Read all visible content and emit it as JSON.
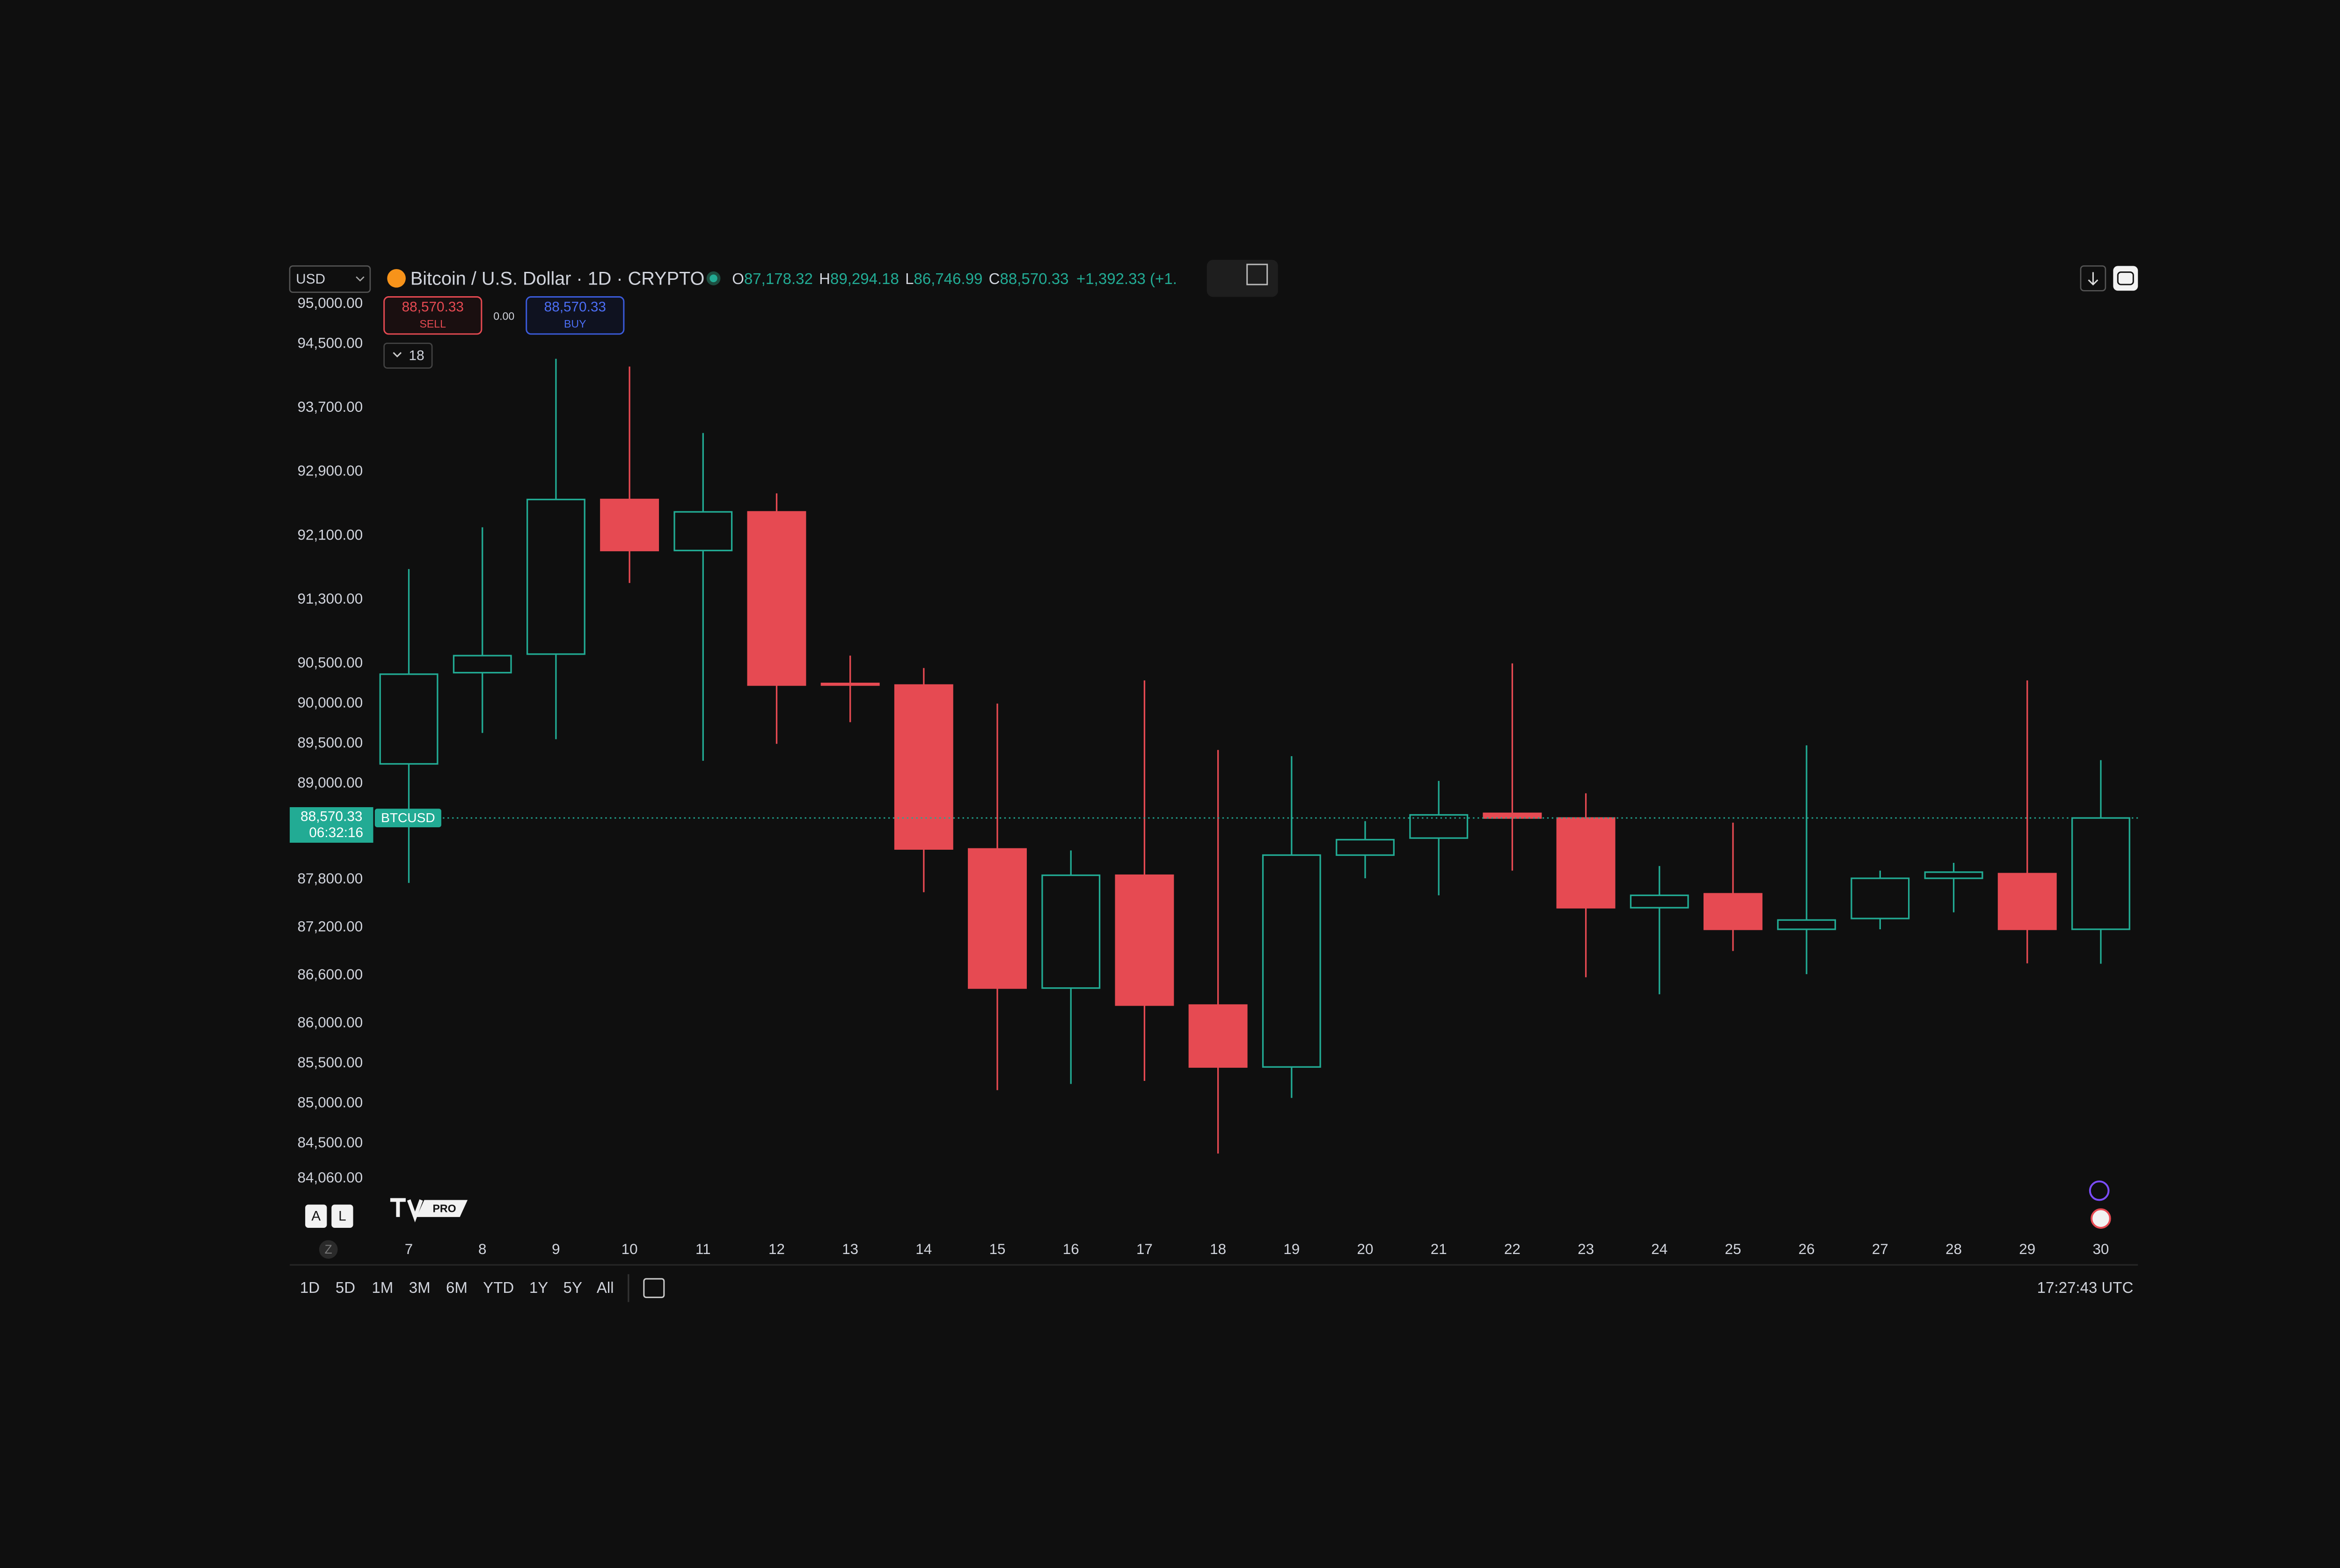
{
  "chart_data": {
    "type": "candlestick",
    "categories": [
      "7",
      "8",
      "9",
      "10",
      "11",
      "12",
      "13",
      "14",
      "15",
      "16",
      "17",
      "18",
      "19",
      "20",
      "21",
      "22",
      "23",
      "24",
      "25",
      "26",
      "27",
      "28",
      "29",
      "30"
    ],
    "open": [
      89247,
      90388,
      90620,
      92554,
      91916,
      92399,
      90253,
      90233,
      88183,
      86443,
      87854,
      86230,
      85456,
      88106,
      88319,
      88628,
      88570,
      87448,
      87622,
      87178,
      87313,
      87816,
      87874,
      87178.32
    ],
    "high": [
      91684,
      92206,
      94314,
      94217,
      93386,
      92631,
      90601,
      90446,
      90001,
      88164,
      90291,
      89421,
      89344,
      88531,
      89034,
      90504,
      88879,
      87970,
      88512,
      89479,
      87912,
      88009,
      90291,
      89294.18
    ],
    "low": [
      87758,
      89634,
      89556,
      91510,
      89286,
      89498,
      89769,
      87642,
      85166,
      85244,
      85282,
      84373,
      85069,
      87816,
      87603,
      87912,
      86578,
      86365,
      86907,
      86617,
      87178,
      87390,
      86752,
      86746.99
    ],
    "close": [
      90369,
      90601,
      92554,
      91916,
      92399,
      90233,
      90233,
      88183,
      86443,
      87854,
      86230,
      85456,
      88106,
      88299,
      88609,
      88570,
      87448,
      87603,
      87178,
      87294,
      87816,
      87893,
      87178,
      88570.33
    ],
    "up_color": "#22ab94",
    "down_color": "#e64a52",
    "hollow_up": true,
    "grid": false,
    "ylim": [
      83425,
      95030
    ],
    "yticks": [
      {
        "value": 95000,
        "label": "95,000.00"
      },
      {
        "value": 94500,
        "label": "94,500.00"
      },
      {
        "value": 93700,
        "label": "93,700.00"
      },
      {
        "value": 92900,
        "label": "92,900.00"
      },
      {
        "value": 92100,
        "label": "92,100.00"
      },
      {
        "value": 91300,
        "label": "91,300.00"
      },
      {
        "value": 90500,
        "label": "90,500.00"
      },
      {
        "value": 90000,
        "label": "90,000.00"
      },
      {
        "value": 89500,
        "label": "89,500.00"
      },
      {
        "value": 89000,
        "label": "89,000.00"
      },
      {
        "value": 87800,
        "label": "87,800.00"
      },
      {
        "value": 87200,
        "label": "87,200.00"
      },
      {
        "value": 86600,
        "label": "86,600.00"
      },
      {
        "value": 86000,
        "label": "86,000.00"
      },
      {
        "value": 85500,
        "label": "85,500.00"
      },
      {
        "value": 85000,
        "label": "85,000.00"
      },
      {
        "value": 84500,
        "label": "84,500.00"
      },
      {
        "value": 84060,
        "label": "84,060.00"
      }
    ],
    "price_line": {
      "value": 88570.33,
      "label": "88,570.33",
      "countdown": "06:32:16",
      "symbol": "BTCUSD"
    }
  },
  "ui": {
    "currency": "USD",
    "symbol_title": "Bitcoin / U.S. Dollar · 1D · CRYPTO",
    "ohlc": [
      {
        "key": "O",
        "text": "87,178.32"
      },
      {
        "key": "H",
        "text": "89,294.18"
      },
      {
        "key": "L",
        "text": "86,746.99"
      },
      {
        "key": "C",
        "text": "88,570.33"
      }
    ],
    "change": "+1,392.33 (+1.",
    "sell_price": "88,570.33",
    "sell": "SELL",
    "spread": "0.00",
    "buy_price": "88,570.33",
    "buy": "BUY",
    "indicators": "18",
    "axis_start": "Z",
    "scale_buttons": [
      "A",
      "L"
    ],
    "logo_badge": "PRO",
    "ranges": [
      "1D",
      "5D",
      "1M",
      "3M",
      "6M",
      "YTD",
      "1Y",
      "5Y",
      "All"
    ],
    "clock": "17:27:43 UTC"
  }
}
